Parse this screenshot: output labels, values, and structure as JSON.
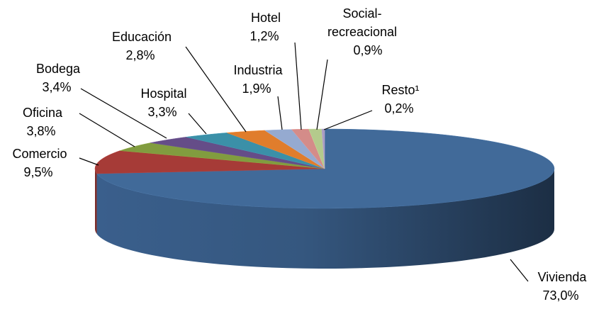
{
  "chart_data": {
    "type": "pie3d",
    "categories": [
      "Vivienda",
      "Comercio",
      "Oficina",
      "Bodega",
      "Hospital",
      "Educación",
      "Industria",
      "Hotel",
      "Social-recreacional",
      "Resto¹"
    ],
    "values": [
      73.0,
      9.5,
      3.8,
      3.4,
      3.3,
      2.8,
      1.9,
      1.2,
      0.9,
      0.2
    ],
    "value_labels": [
      "73,0%",
      "9,5%",
      "3,8%",
      "3,4%",
      "3,3%",
      "2,8%",
      "1,9%",
      "1,2%",
      "0,9%",
      "0,2%"
    ],
    "colors": [
      "#416a99",
      "#a63b37",
      "#819c3f",
      "#654d88",
      "#3b90a8",
      "#e07d2c",
      "#95aad0",
      "#d48c89",
      "#b4ca8c",
      "#a99bc2"
    ]
  }
}
